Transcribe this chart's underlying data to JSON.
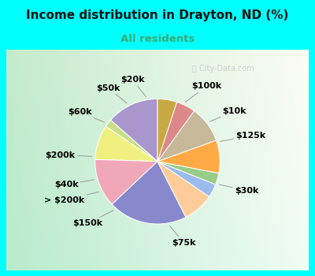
{
  "title": "Income distribution in Drayton, ND (%)",
  "subtitle": "All residents",
  "title_color": "#111111",
  "subtitle_color": "#3aaa70",
  "bg_top": "#00ffff",
  "bg_chart_left": "#c8ece0",
  "bg_chart_right": "#e8f8f0",
  "labels": [
    "$100k",
    "$10k",
    "$125k",
    "$30k",
    "$75k",
    "$150k",
    "> $200k",
    "$40k",
    "$200k",
    "$60k",
    "$50k",
    "$20k"
  ],
  "sizes": [
    13.5,
    2.0,
    9.0,
    12.5,
    20.5,
    8.0,
    3.5,
    3.0,
    8.5,
    9.5,
    5.0,
    5.0
  ],
  "colors": [
    "#a896cc",
    "#c8dd88",
    "#f0f080",
    "#f0a8b8",
    "#8888cc",
    "#ffcc99",
    "#99bbee",
    "#99cc88",
    "#ffaa44",
    "#c8b89a",
    "#dd8888",
    "#c8a844"
  ],
  "label_fontsize": 8.0,
  "startangle": 90,
  "watermark": "ⓘ City-Data.com"
}
